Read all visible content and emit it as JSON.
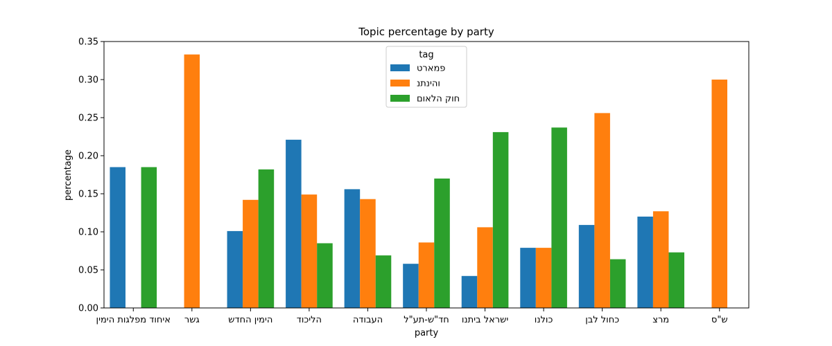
{
  "chart_data": {
    "type": "bar",
    "title": "Topic percentage by party",
    "xlabel": "party",
    "ylabel": "percentage",
    "ylim": [
      0,
      0.35
    ],
    "yticks": [
      "0.00",
      "0.05",
      "0.10",
      "0.15",
      "0.20",
      "0.25",
      "0.30",
      "0.35"
    ],
    "categories": [
      "איחוד מפלגות הימין",
      "גשר",
      "הימין החדש",
      "הליכוד",
      "העבודה",
      "חד\"ש-תע\"ל",
      "ישראל ביתנו",
      "כולנו",
      "כחול לבן",
      "מרצ",
      "ש\"ס"
    ],
    "legend": {
      "title": "tag",
      "placement": "upper-center"
    },
    "grid": false,
    "series": [
      {
        "name": "פמארט",
        "color": "#1f77b4",
        "values": [
          0.185,
          null,
          0.101,
          0.221,
          0.156,
          0.058,
          0.042,
          0.079,
          0.109,
          0.12,
          null
        ]
      },
      {
        "name": "והינתנ",
        "color": "#ff7f0e",
        "values": [
          null,
          0.333,
          0.142,
          0.149,
          0.143,
          0.086,
          0.106,
          0.079,
          0.256,
          0.127,
          0.3
        ]
      },
      {
        "name": "חוק הלאום",
        "color": "#2ca02c",
        "values": [
          0.185,
          null,
          0.182,
          0.085,
          0.069,
          0.17,
          0.231,
          0.237,
          0.064,
          0.073,
          null
        ]
      }
    ]
  }
}
